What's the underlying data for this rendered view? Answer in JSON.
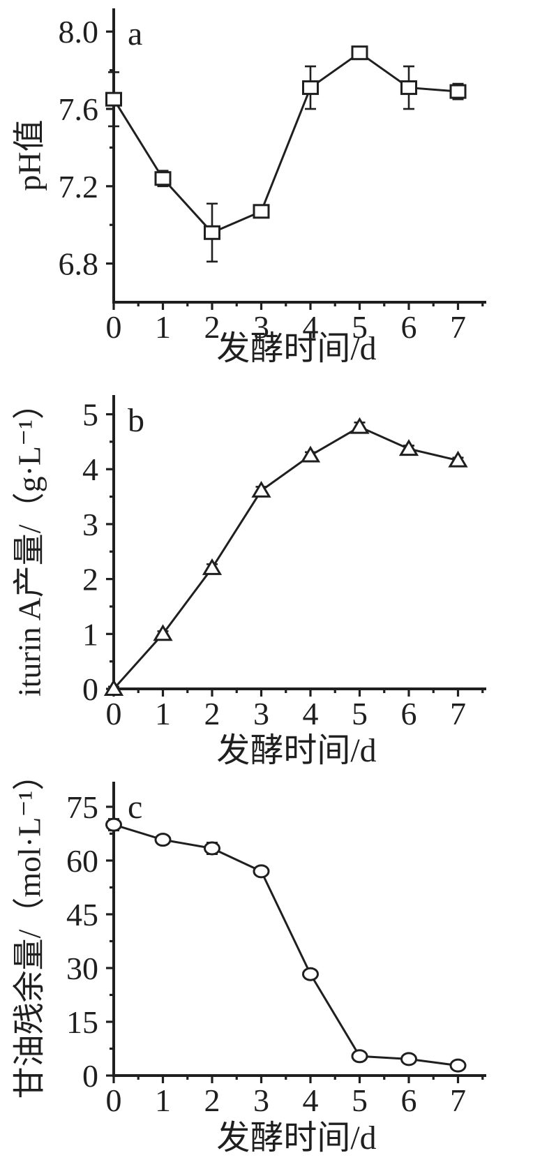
{
  "figure": {
    "background": "#ffffff",
    "ink": "#1f1f1f",
    "description_labels": {
      "panel_a_letter": "a",
      "panel_b_letter": "b",
      "panel_c_letter": "c"
    }
  },
  "chart_data": [
    {
      "panel_label": "a",
      "type": "line",
      "marker": "open-square",
      "title": "",
      "xlabel": "发酵时间/d",
      "ylabel": "pH值",
      "x": [
        0,
        1,
        2,
        3,
        4,
        5,
        6,
        7
      ],
      "y": [
        7.65,
        7.24,
        6.96,
        7.07,
        7.71,
        7.89,
        7.71,
        7.69
      ],
      "yerr": [
        0.14,
        0.04,
        0.15,
        0.03,
        0.11,
        0.03,
        0.11,
        0.04
      ],
      "xlim": [
        0,
        7.57
      ],
      "ylim": [
        6.6,
        8.12
      ],
      "xticks": [
        0,
        1,
        2,
        3,
        4,
        5,
        6,
        7
      ],
      "xminor": [
        0.5,
        1.5,
        2.5,
        3.5,
        4.5,
        5.5,
        6.5,
        7.5
      ],
      "yticks": [
        6.8,
        7.2,
        7.6,
        8.0
      ],
      "ytick_labels": [
        "6.8",
        "7.2",
        "7.6",
        "8.0"
      ],
      "yminor": [
        7.0,
        7.4,
        7.8
      ],
      "grid": false,
      "legend": null
    },
    {
      "panel_label": "b",
      "type": "line",
      "marker": "open-triangle",
      "title": "",
      "xlabel": "发酵时间/d",
      "ylabel": "iturin A产量/（g·L⁻¹）",
      "x": [
        0,
        1,
        2,
        3,
        4,
        5,
        6,
        7
      ],
      "y": [
        0,
        1.0,
        2.2,
        3.61,
        4.25,
        4.77,
        4.37,
        4.16
      ],
      "yerr": [
        0.04,
        0.05,
        0.07,
        0.07,
        0.06,
        0.08,
        0.06,
        0.05
      ],
      "xlim": [
        0,
        7.57
      ],
      "ylim": [
        0,
        5.35
      ],
      "xticks": [
        0,
        1,
        2,
        3,
        4,
        5,
        6,
        7
      ],
      "xminor": [
        0.5,
        1.5,
        2.5,
        3.5,
        4.5,
        5.5,
        6.5,
        7.5
      ],
      "yticks": [
        0,
        1,
        2,
        3,
        4,
        5
      ],
      "ytick_labels": [
        "0",
        "1",
        "2",
        "3",
        "4",
        "5"
      ],
      "yminor": [
        0.5,
        1.5,
        2.5,
        3.5,
        4.5
      ],
      "grid": false,
      "legend": null
    },
    {
      "panel_label": "c",
      "type": "line",
      "marker": "open-circle",
      "title": "",
      "xlabel": "发酵时间/d",
      "ylabel": "甘油残余量/（mol·L⁻¹）",
      "x": [
        0,
        1,
        2,
        3,
        4,
        5,
        6,
        7
      ],
      "y": [
        70,
        65.8,
        63.4,
        57,
        28.3,
        5.4,
        4.6,
        2.8
      ],
      "yerr": [
        1.6,
        0.7,
        1.6,
        0.7,
        0.8,
        1.2,
        1.2,
        1.2
      ],
      "xlim": [
        0,
        7.57
      ],
      "ylim": [
        0,
        82
      ],
      "xticks": [
        0,
        1,
        2,
        3,
        4,
        5,
        6,
        7
      ],
      "xminor": [
        0.5,
        1.5,
        2.5,
        3.5,
        4.5,
        5.5,
        6.5,
        7.5
      ],
      "yticks": [
        0,
        15,
        30,
        45,
        60,
        75
      ],
      "ytick_labels": [
        "0",
        "15",
        "30",
        "45",
        "60",
        "75"
      ],
      "yminor": [
        7.5,
        22.5,
        37.5,
        52.5,
        67.5
      ],
      "grid": false,
      "legend": null
    }
  ]
}
